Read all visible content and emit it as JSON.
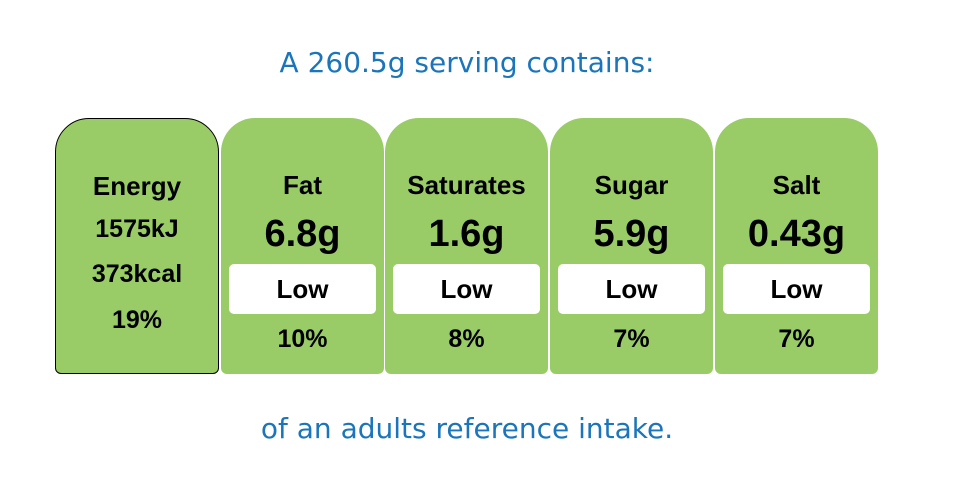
{
  "header": {
    "title": "A 260.5g serving contains:"
  },
  "energy": {
    "label": "Energy",
    "lines": [
      "1575kJ",
      "373kcal",
      "19%"
    ]
  },
  "nutrients": [
    {
      "name": "Fat",
      "amount": "6.8g",
      "level": "Low",
      "percent": "10%"
    },
    {
      "name": "Saturates",
      "amount": "1.6g",
      "level": "Low",
      "percent": "8%"
    },
    {
      "name": "Sugar",
      "amount": "5.9g",
      "level": "Low",
      "percent": "7%"
    },
    {
      "name": "Salt",
      "amount": "0.43g",
      "level": "Low",
      "percent": "7%"
    }
  ],
  "footer": {
    "text": "of an adults reference intake."
  }
}
